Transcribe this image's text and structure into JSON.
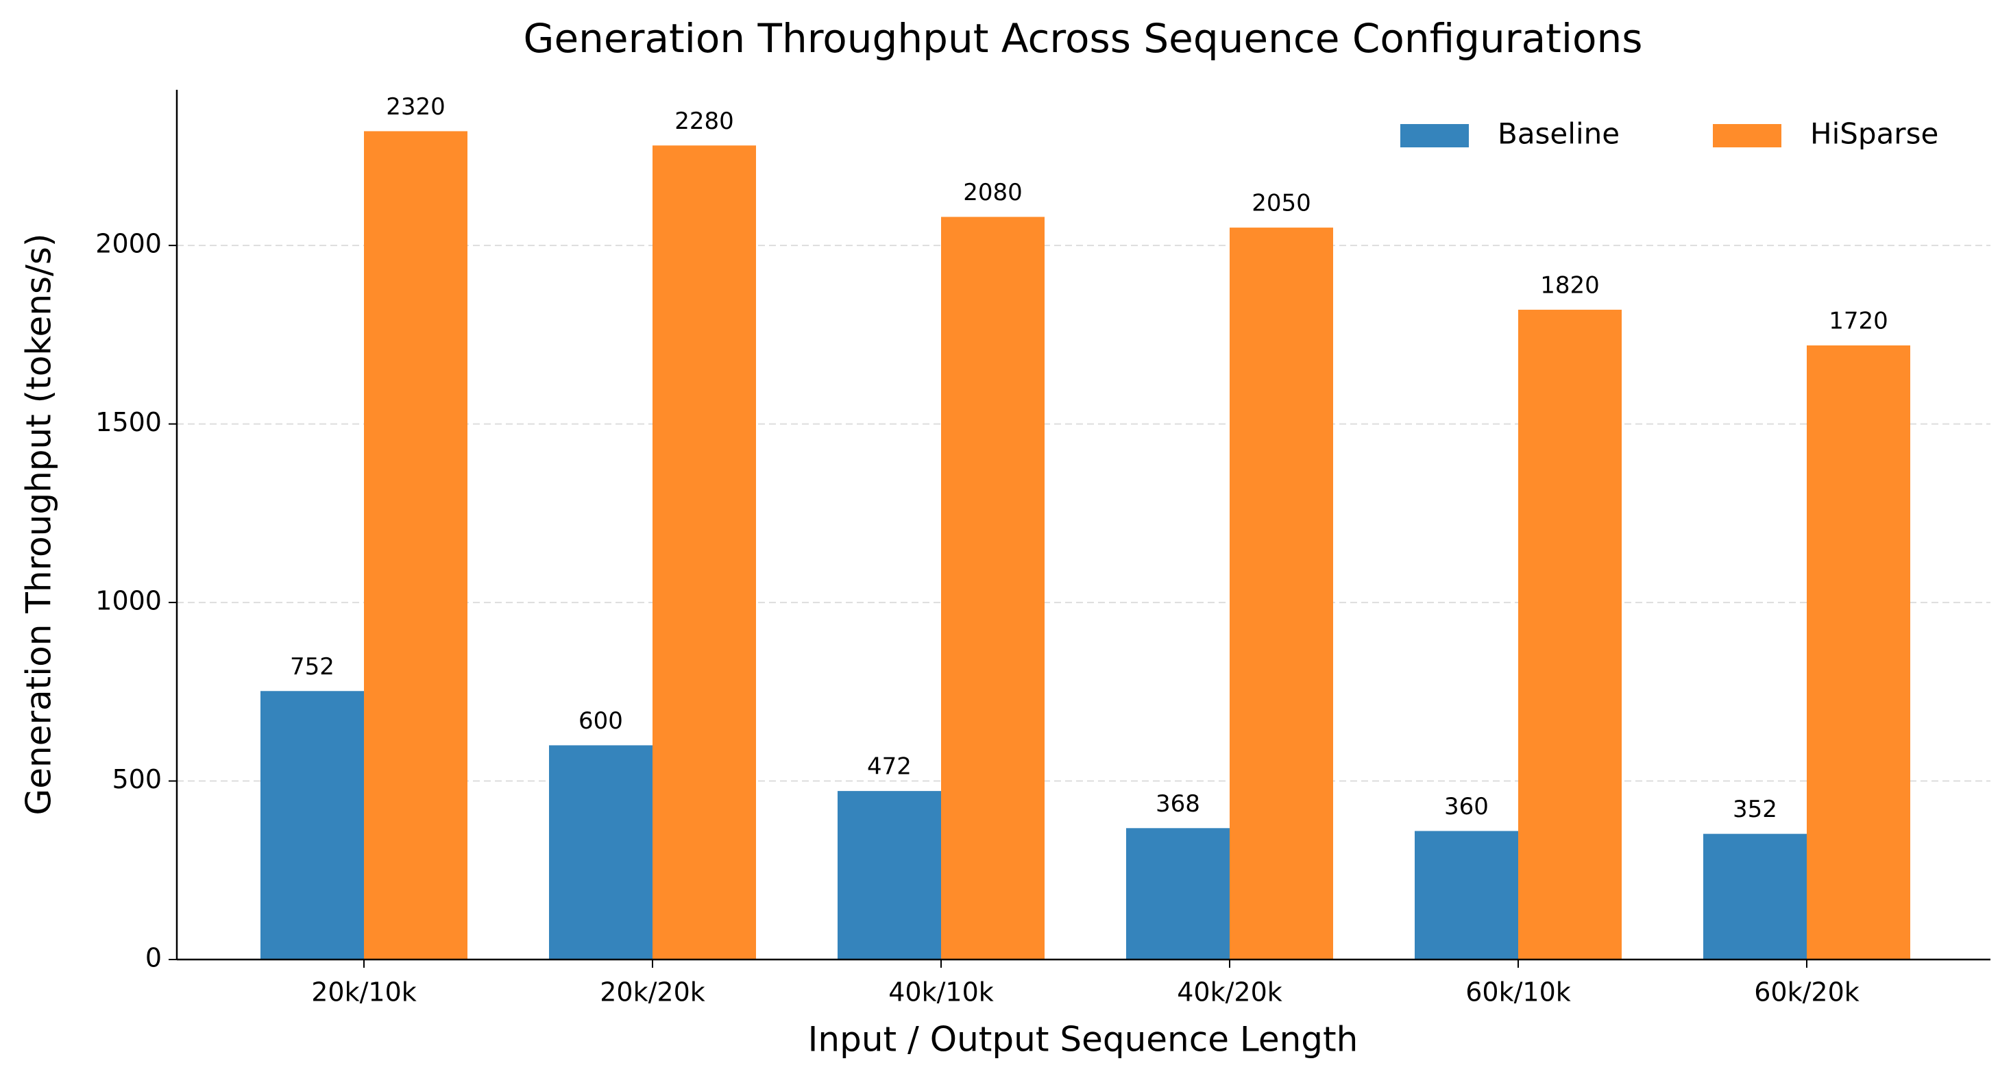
{
  "chart_data": {
    "type": "grouped_bar",
    "title": "Generation Throughput Across Sequence Configurations",
    "x_label": "Input / Output Sequence Length",
    "y_label": "Generation Throughput (tokens/s)",
    "categories": [
      "20k/10k",
      "20k/20k",
      "40k/10k",
      "40k/20k",
      "60k/10k",
      "60k/20k"
    ],
    "series": [
      {
        "name": "Baseline",
        "color": "#3584bc",
        "values": [
          752,
          600,
          472,
          368,
          360,
          352
        ]
      },
      {
        "name": "HiSparse",
        "color": "#ff8c2a",
        "values": [
          2320,
          2280,
          2080,
          2050,
          1820,
          1720
        ]
      }
    ],
    "ylim": [
      0,
      2436
    ],
    "yticks": [
      0,
      500,
      1000,
      1500,
      2000
    ],
    "grid": true,
    "legend": "upper-right"
  }
}
